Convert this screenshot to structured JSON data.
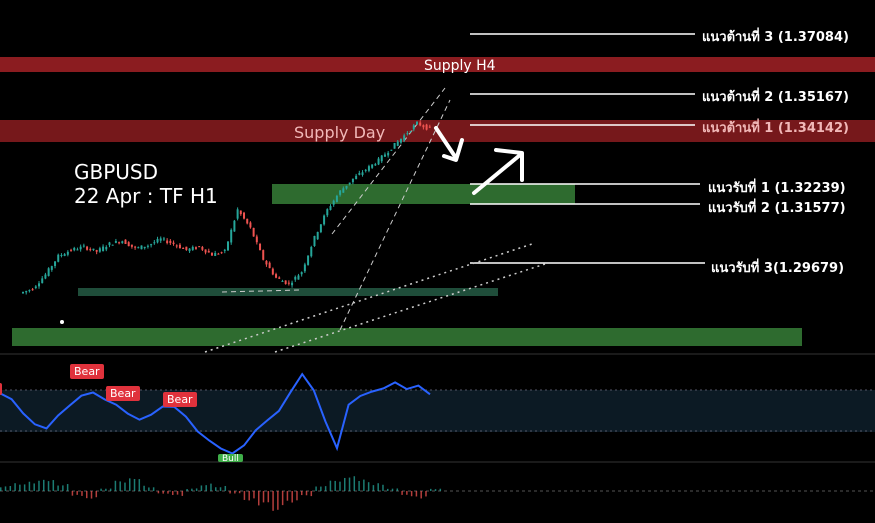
{
  "chart": {
    "symbol": "GBPUSD",
    "date_timeframe": "22 Apr : TF H1",
    "colors": {
      "background": "#000000",
      "supply_zone": "#8b1c20",
      "demand_zone": "#2e6b2f",
      "demand_zone_small": "#1f4d3a",
      "bull_candle": "#26a69a",
      "bear_candle": "#ef5350",
      "rsi_line": "#2962ff",
      "annotation": "#ffffff"
    }
  },
  "zones": {
    "supply_h4": "Supply H4",
    "supply_day": "Supply Day"
  },
  "levels": {
    "r3": "แนวต้านที่ 3 (1.37084)",
    "r2": "แนวต้านที่ 2 (1.35167)",
    "r1": "แนวต้านที่ 1 (1.34142)",
    "s1": "แนวรับที่ 1 (1.32239)",
    "s2": "แนวรับที่ 2 (1.31577)",
    "s3": "แนวรับที่ 3(1.29679)"
  },
  "badges": {
    "bear": "Bear",
    "bull": "Bull"
  },
  "chart_data": {
    "type": "line",
    "title": "GBPUSD",
    "subtitle": "22 Apr : TF H1",
    "price_path": [
      1.287,
      1.2885,
      1.293,
      1.299,
      1.301,
      1.302,
      1.3005,
      1.303,
      1.304,
      1.3015,
      1.3025,
      1.3045,
      1.303,
      1.301,
      1.302,
      1.2995,
      1.3005,
      1.314,
      1.308,
      1.298,
      1.292,
      1.29,
      1.294,
      1.305,
      1.314,
      1.32,
      1.324,
      1.327,
      1.33,
      1.334,
      1.338,
      1.342,
      1.34
    ],
    "horizontal_levels": [
      {
        "name": "แนวต้านที่ 3",
        "value": 1.37084
      },
      {
        "name": "แนวต้านที่ 2",
        "value": 1.35167
      },
      {
        "name": "แนวต้านที่ 1",
        "value": 1.34142
      },
      {
        "name": "แนวรับที่ 1",
        "value": 1.32239
      },
      {
        "name": "แนวรับที่ 2",
        "value": 1.31577
      },
      {
        "name": "แนวรับที่ 3",
        "value": 1.29679
      }
    ],
    "indicator_rsi": [
      60,
      58,
      50,
      45,
      42,
      48,
      55,
      60,
      62,
      58,
      55,
      50,
      45,
      50,
      55,
      52,
      48,
      40,
      35,
      30,
      28,
      32,
      40,
      45,
      50,
      60,
      70,
      62,
      45,
      30,
      55,
      58,
      60,
      62,
      65,
      63,
      64,
      60
    ],
    "indicator_histogram": [
      0.2,
      0.3,
      0.4,
      0.5,
      0.3,
      -0.2,
      -0.3,
      0.1,
      0.4,
      0.5,
      0.2,
      -0.1,
      -0.2,
      0.1,
      0.3,
      0.2,
      -0.1,
      -0.4,
      -0.6,
      -0.8,
      -0.5,
      -0.2,
      0.2,
      0.5,
      0.7,
      0.5,
      0.3,
      0.1,
      -0.2,
      -0.3,
      0.1
    ]
  }
}
